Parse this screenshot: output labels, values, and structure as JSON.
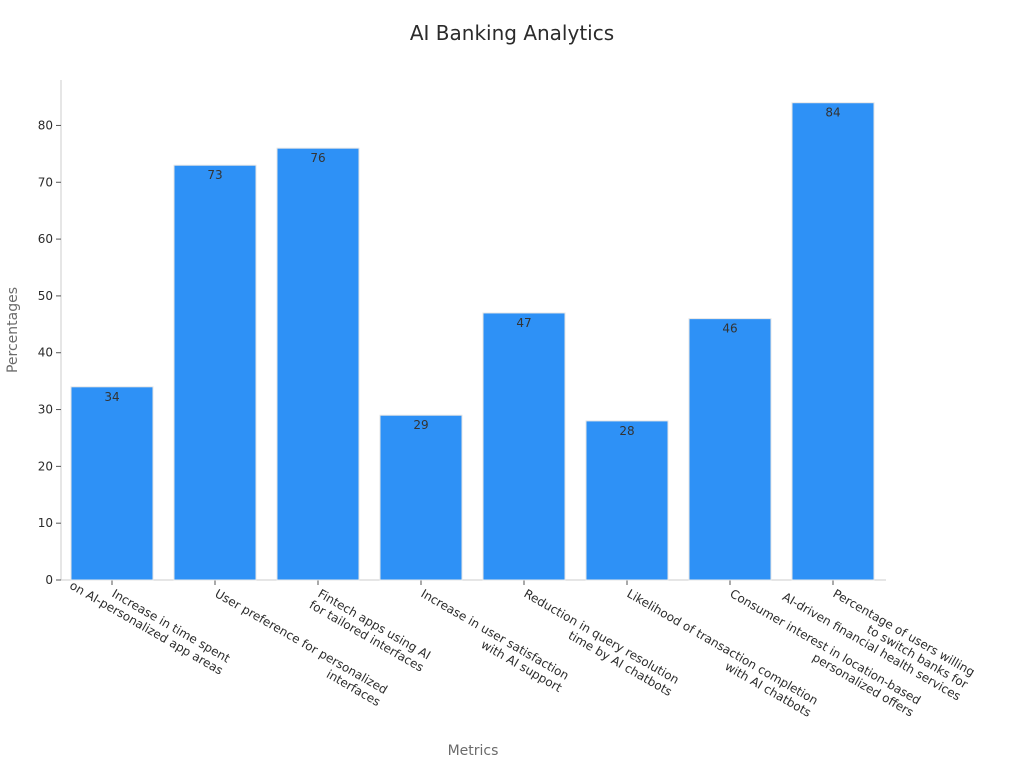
{
  "chart_data": {
    "type": "bar",
    "title": "AI Banking Analytics",
    "xlabel": "Metrics",
    "ylabel": "Percentages",
    "ylim": [
      0,
      88
    ],
    "yticks": [
      0,
      10,
      20,
      30,
      40,
      50,
      60,
      70,
      80
    ],
    "grid": false,
    "bar_color": "#2e91f6",
    "categories": [
      [
        "Increase in time spent",
        "on AI-personalized app areas"
      ],
      [
        "User preference for personalized",
        "interfaces"
      ],
      [
        "Fintech apps using AI",
        "for tailored interfaces"
      ],
      [
        "Increase in user satisfaction",
        "with AI support"
      ],
      [
        "Reduction in query resolution",
        "time by AI chatbots"
      ],
      [
        "Likelihood of transaction completion",
        "with AI chatbots"
      ],
      [
        "Consumer interest in location-based",
        "personalized offers"
      ],
      [
        "Percentage of users willing",
        "to switch banks for",
        "AI-driven financial health services"
      ]
    ],
    "values": [
      34,
      73,
      76,
      29,
      47,
      28,
      46,
      84
    ],
    "data_labels": [
      "34",
      "73",
      "76",
      "29",
      "47",
      "28",
      "46",
      "84"
    ]
  }
}
